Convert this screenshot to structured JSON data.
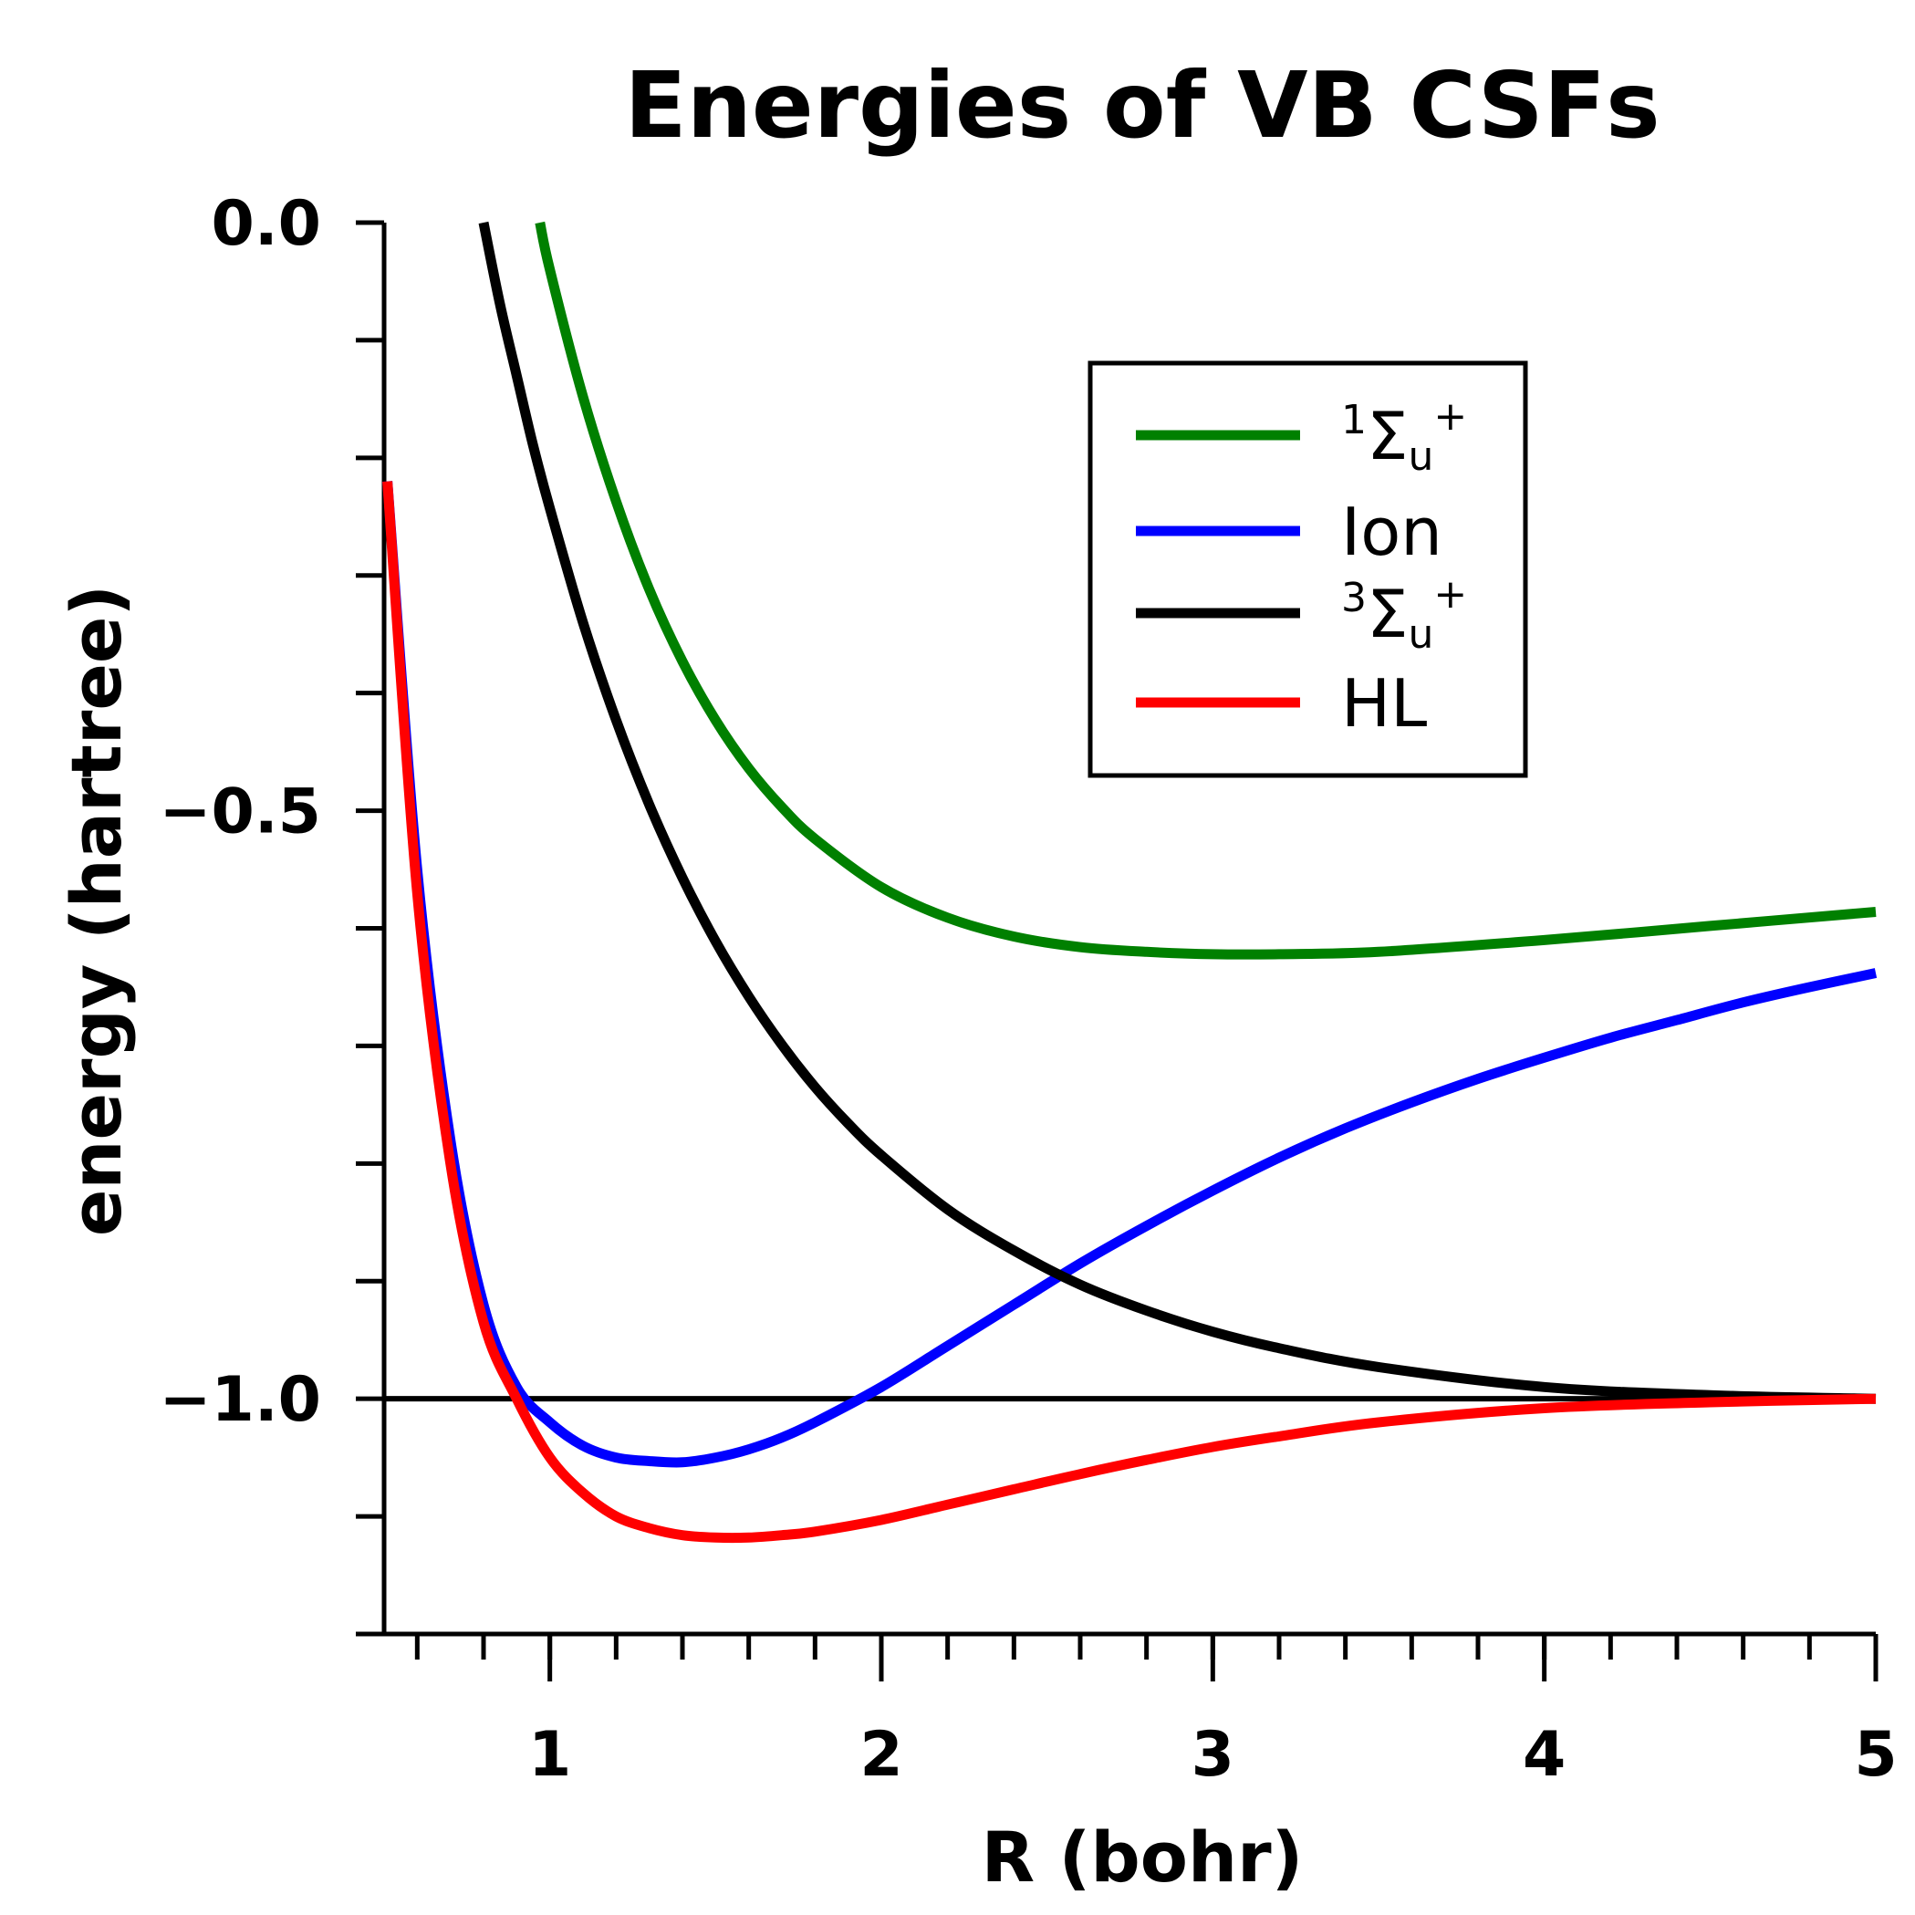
{
  "chart_data": {
    "type": "line",
    "title": "Energies of VB CSFs",
    "xlabel": "R (bohr)",
    "ylabel": "energy (hartree)",
    "xlim": [
      0.5,
      5.0
    ],
    "ylim": [
      -1.2,
      0.0
    ],
    "x_major_ticks": [
      1,
      2,
      3,
      4,
      5
    ],
    "x_tick_labels": [
      "1",
      "2",
      "3",
      "4",
      "5"
    ],
    "x_minor_step": 0.2,
    "y_major_ticks": [
      0.0,
      -0.5,
      -1.0
    ],
    "y_tick_labels": [
      "0.0",
      "−0.5",
      "−1.0"
    ],
    "y_minor_step": 0.1,
    "grid": false,
    "legend_position": "top-right",
    "reference_line": {
      "y": -1.0,
      "color": "#000000"
    },
    "series": [
      {
        "name_main": "Σ",
        "name_sup_left": "1",
        "name_sub": "u",
        "name_sup_right": "+",
        "color": "#008000",
        "x": [
          0.97,
          1.0,
          1.1,
          1.2,
          1.3,
          1.4,
          1.5,
          1.6,
          1.7,
          1.8,
          2.0,
          2.2,
          2.4,
          2.6,
          2.8,
          3.0,
          3.2,
          3.5,
          4.0,
          4.5,
          5.0
        ],
        "y": [
          0.0,
          -0.04,
          -0.148,
          -0.237,
          -0.312,
          -0.373,
          -0.423,
          -0.464,
          -0.497,
          -0.524,
          -0.565,
          -0.591,
          -0.607,
          -0.616,
          -0.62,
          -0.622,
          -0.622,
          -0.62,
          -0.61,
          -0.598,
          -0.586
        ]
      },
      {
        "name": "Ion",
        "color": "#0000ff",
        "x": [
          0.51,
          0.6,
          0.7,
          0.8,
          0.9,
          1.0,
          1.1,
          1.2,
          1.3,
          1.4,
          1.5,
          1.6,
          1.7,
          1.8,
          2.0,
          2.2,
          2.4,
          2.6,
          2.8,
          3.0,
          3.2,
          3.4,
          3.6,
          3.8,
          4.0,
          4.2,
          4.4,
          4.6,
          4.8,
          5.0
        ],
        "y": [
          -0.22,
          -0.55,
          -0.78,
          -0.92,
          -0.99,
          -1.02,
          -1.04,
          -1.05,
          -1.053,
          -1.054,
          -1.05,
          -1.043,
          -1.033,
          -1.02,
          -0.99,
          -0.955,
          -0.92,
          -0.885,
          -0.853,
          -0.823,
          -0.795,
          -0.77,
          -0.748,
          -0.728,
          -0.71,
          -0.693,
          -0.678,
          -0.663,
          -0.65,
          -0.638
        ]
      },
      {
        "name_main": "Σ",
        "name_sup_left": "3",
        "name_sub": "u",
        "name_sup_right": "+",
        "color": "#000000",
        "x": [
          0.8,
          0.85,
          0.9,
          0.95,
          1.0,
          1.1,
          1.2,
          1.3,
          1.4,
          1.5,
          1.6,
          1.7,
          1.8,
          1.9,
          2.0,
          2.2,
          2.4,
          2.6,
          2.8,
          3.0,
          3.2,
          3.5,
          4.0,
          4.5,
          5.0
        ],
        "y": [
          0.0,
          -0.07,
          -0.13,
          -0.19,
          -0.243,
          -0.34,
          -0.423,
          -0.495,
          -0.557,
          -0.611,
          -0.658,
          -0.699,
          -0.735,
          -0.766,
          -0.793,
          -0.839,
          -0.874,
          -0.903,
          -0.925,
          -0.943,
          -0.957,
          -0.973,
          -0.99,
          -0.997,
          -1.0
        ]
      },
      {
        "name": "HL",
        "color": "#ff0000",
        "x": [
          0.51,
          0.6,
          0.7,
          0.8,
          0.9,
          1.0,
          1.1,
          1.2,
          1.3,
          1.4,
          1.5,
          1.6,
          1.7,
          1.8,
          2.0,
          2.2,
          2.4,
          2.6,
          2.8,
          3.0,
          3.2,
          3.5,
          4.0,
          4.5,
          5.0
        ],
        "y": [
          -0.22,
          -0.57,
          -0.8,
          -0.935,
          -1.0,
          -1.05,
          -1.08,
          -1.1,
          -1.11,
          -1.116,
          -1.118,
          -1.118,
          -1.116,
          -1.113,
          -1.103,
          -1.09,
          -1.077,
          -1.064,
          -1.052,
          -1.041,
          -1.032,
          -1.02,
          -1.008,
          -1.003,
          -1.0
        ]
      }
    ]
  }
}
